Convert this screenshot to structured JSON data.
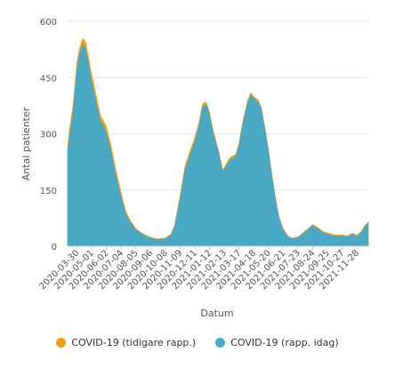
{
  "chart_data": {
    "type": "area",
    "xlabel": "Datum",
    "ylabel": "Antal patienter",
    "ylim": [
      0,
      600
    ],
    "yticks": [
      0,
      150,
      300,
      450,
      600
    ],
    "xtick_labels": [
      "2020-03-30",
      "2020-05-01",
      "2020-06-02",
      "2020-07-04",
      "2020-08-05",
      "2020-09-06",
      "2020-10-08",
      "2020-11-09",
      "2020-12-11",
      "2021-01-12",
      "2021-02-13",
      "2021-03-17",
      "2021-04-18",
      "2021-05-20",
      "2021-06-21",
      "2021-07-23",
      "2021-08-24",
      "2021-09-25",
      "2021-10-27",
      "2021-11-28"
    ],
    "grid": "horizontal",
    "legend_position": "bottom",
    "date_range": [
      "2020-03-10",
      "2021-12-23"
    ],
    "series": [
      {
        "name": "COVID-19 (tidigare rapp.)",
        "color": "#f59f16",
        "points": [
          [
            "2020-03-10",
            270
          ],
          [
            "2020-03-15",
            320
          ],
          [
            "2020-03-22",
            380
          ],
          [
            "2020-03-30",
            490
          ],
          [
            "2020-04-05",
            530
          ],
          [
            "2020-04-12",
            555
          ],
          [
            "2020-04-18",
            545
          ],
          [
            "2020-04-24",
            510
          ],
          [
            "2020-05-01",
            460
          ],
          [
            "2020-05-10",
            410
          ],
          [
            "2020-05-20",
            350
          ],
          [
            "2020-06-02",
            320
          ],
          [
            "2020-06-12",
            270
          ],
          [
            "2020-06-22",
            210
          ],
          [
            "2020-07-04",
            145
          ],
          [
            "2020-07-14",
            95
          ],
          [
            "2020-07-24",
            70
          ],
          [
            "2020-08-05",
            48
          ],
          [
            "2020-08-20",
            34
          ],
          [
            "2020-09-06",
            24
          ],
          [
            "2020-09-20",
            20
          ],
          [
            "2020-10-08",
            22
          ],
          [
            "2020-10-20",
            32
          ],
          [
            "2020-10-28",
            55
          ],
          [
            "2020-11-09",
            135
          ],
          [
            "2020-11-20",
            215
          ],
          [
            "2020-12-01",
            255
          ],
          [
            "2020-12-11",
            290
          ],
          [
            "2020-12-20",
            330
          ],
          [
            "2020-12-28",
            380
          ],
          [
            "2021-01-05",
            385
          ],
          [
            "2021-01-12",
            360
          ],
          [
            "2021-01-20",
            310
          ],
          [
            "2021-02-01",
            255
          ],
          [
            "2021-02-10",
            205
          ],
          [
            "2021-02-13",
            210
          ],
          [
            "2021-02-22",
            230
          ],
          [
            "2021-03-01",
            240
          ],
          [
            "2021-03-10",
            245
          ],
          [
            "2021-03-17",
            275
          ],
          [
            "2021-03-25",
            330
          ],
          [
            "2021-04-05",
            390
          ],
          [
            "2021-04-12",
            410
          ],
          [
            "2021-04-18",
            400
          ],
          [
            "2021-04-28",
            390
          ],
          [
            "2021-05-05",
            370
          ],
          [
            "2021-05-15",
            300
          ],
          [
            "2021-05-20",
            260
          ],
          [
            "2021-05-28",
            190
          ],
          [
            "2021-06-05",
            125
          ],
          [
            "2021-06-12",
            80
          ],
          [
            "2021-06-21",
            48
          ],
          [
            "2021-07-01",
            28
          ],
          [
            "2021-07-10",
            22
          ],
          [
            "2021-07-23",
            25
          ],
          [
            "2021-08-05",
            38
          ],
          [
            "2021-08-15",
            48
          ],
          [
            "2021-08-24",
            58
          ],
          [
            "2021-09-05",
            50
          ],
          [
            "2021-09-15",
            40
          ],
          [
            "2021-09-25",
            36
          ],
          [
            "2021-10-05",
            32
          ],
          [
            "2021-10-15",
            30
          ],
          [
            "2021-10-27",
            30
          ],
          [
            "2021-11-08",
            28
          ],
          [
            "2021-11-18",
            35
          ],
          [
            "2021-11-28",
            30
          ],
          [
            "2021-12-08",
            40
          ],
          [
            "2021-12-15",
            55
          ],
          [
            "2021-12-23",
            65
          ]
        ]
      },
      {
        "name": "COVID-19 (rapp. idag)",
        "color": "#49a9c4",
        "points": [
          [
            "2020-03-10",
            255
          ],
          [
            "2020-03-15",
            300
          ],
          [
            "2020-03-22",
            360
          ],
          [
            "2020-03-30",
            470
          ],
          [
            "2020-04-05",
            515
          ],
          [
            "2020-04-12",
            540
          ],
          [
            "2020-04-18",
            525
          ],
          [
            "2020-04-24",
            490
          ],
          [
            "2020-05-01",
            440
          ],
          [
            "2020-05-10",
            390
          ],
          [
            "2020-05-20",
            335
          ],
          [
            "2020-06-02",
            305
          ],
          [
            "2020-06-12",
            255
          ],
          [
            "2020-06-22",
            195
          ],
          [
            "2020-07-04",
            132
          ],
          [
            "2020-07-14",
            88
          ],
          [
            "2020-07-24",
            64
          ],
          [
            "2020-08-05",
            44
          ],
          [
            "2020-08-20",
            31
          ],
          [
            "2020-09-06",
            22
          ],
          [
            "2020-09-20",
            18
          ],
          [
            "2020-10-08",
            20
          ],
          [
            "2020-10-20",
            30
          ],
          [
            "2020-10-28",
            50
          ],
          [
            "2020-11-09",
            125
          ],
          [
            "2020-11-20",
            205
          ],
          [
            "2020-12-01",
            245
          ],
          [
            "2020-12-11",
            280
          ],
          [
            "2020-12-20",
            320
          ],
          [
            "2020-12-28",
            372
          ],
          [
            "2021-01-05",
            378
          ],
          [
            "2021-01-12",
            352
          ],
          [
            "2021-01-20",
            302
          ],
          [
            "2021-02-01",
            248
          ],
          [
            "2021-02-10",
            198
          ],
          [
            "2021-02-13",
            204
          ],
          [
            "2021-02-22",
            224
          ],
          [
            "2021-03-01",
            234
          ],
          [
            "2021-03-10",
            240
          ],
          [
            "2021-03-17",
            268
          ],
          [
            "2021-03-25",
            324
          ],
          [
            "2021-04-05",
            384
          ],
          [
            "2021-04-12",
            404
          ],
          [
            "2021-04-18",
            395
          ],
          [
            "2021-04-28",
            385
          ],
          [
            "2021-05-05",
            364
          ],
          [
            "2021-05-15",
            294
          ],
          [
            "2021-05-20",
            254
          ],
          [
            "2021-05-28",
            184
          ],
          [
            "2021-06-05",
            120
          ],
          [
            "2021-06-12",
            76
          ],
          [
            "2021-06-21",
            45
          ],
          [
            "2021-07-01",
            26
          ],
          [
            "2021-07-10",
            20
          ],
          [
            "2021-07-23",
            23
          ],
          [
            "2021-08-05",
            35
          ],
          [
            "2021-08-15",
            45
          ],
          [
            "2021-08-24",
            55
          ],
          [
            "2021-09-05",
            47
          ],
          [
            "2021-09-15",
            37
          ],
          [
            "2021-09-25",
            33
          ],
          [
            "2021-10-05",
            29
          ],
          [
            "2021-10-15",
            27
          ],
          [
            "2021-10-27",
            27
          ],
          [
            "2021-11-08",
            25
          ],
          [
            "2021-11-18",
            32
          ],
          [
            "2021-11-28",
            27
          ],
          [
            "2021-12-08",
            37
          ],
          [
            "2021-12-15",
            52
          ],
          [
            "2021-12-23",
            62
          ]
        ]
      }
    ]
  }
}
